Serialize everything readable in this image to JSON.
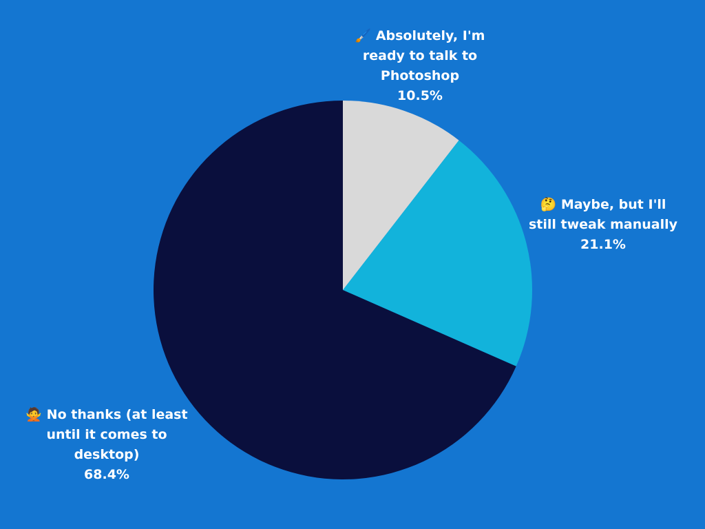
{
  "chart_data": {
    "type": "pie",
    "categories": [
      "🖌️ Absolutely, I'm ready to talk to Photoshop",
      "🤔 Maybe, but I'll still tweak manually",
      "🙅 No thanks (at least until it comes to desktop)"
    ],
    "values": [
      10.5,
      21.1,
      68.4
    ],
    "value_labels": [
      "10.5%",
      "21.1%",
      "68.4%"
    ],
    "colors": [
      "#d9d9d9",
      "#12b3db",
      "#0a0f3d"
    ]
  }
}
